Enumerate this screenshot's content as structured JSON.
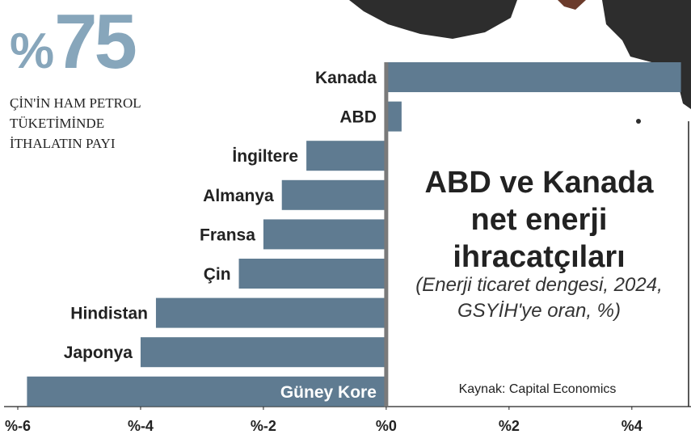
{
  "chart_data": {
    "type": "barh",
    "title": "ABD ve Kanada net enerji ihracatçıları",
    "subtitle": "(Enerji ticaret dengesi, 2024, GSYİH'ye oran, %)",
    "source": "Kaynak: Capital Economics",
    "callout": {
      "prefix": "%",
      "value": 75,
      "lines": [
        "ÇİN'İN HAM PETROL",
        "TÜKETİMİNDE",
        "İTHALATIN PAYI"
      ]
    },
    "categories": [
      "Kanada",
      "ABD",
      "İngiltere",
      "Almanya",
      "Fransa",
      "Çin",
      "Hindistan",
      "Japonya",
      "Güney Kore"
    ],
    "values": [
      4.8,
      0.25,
      -1.3,
      -1.7,
      -2.0,
      -2.4,
      -3.75,
      -4.0,
      -5.85
    ],
    "color": "#5f7b91",
    "xlim": [
      -6.25,
      4.95
    ],
    "xticks": [
      {
        "value": -6,
        "label": "%-6"
      },
      {
        "value": -4,
        "label": "%-4"
      },
      {
        "value": -2,
        "label": "%-2"
      },
      {
        "value": 0,
        "label": "%0"
      },
      {
        "value": 2,
        "label": "%2"
      },
      {
        "value": 4,
        "label": "%4"
      }
    ]
  }
}
